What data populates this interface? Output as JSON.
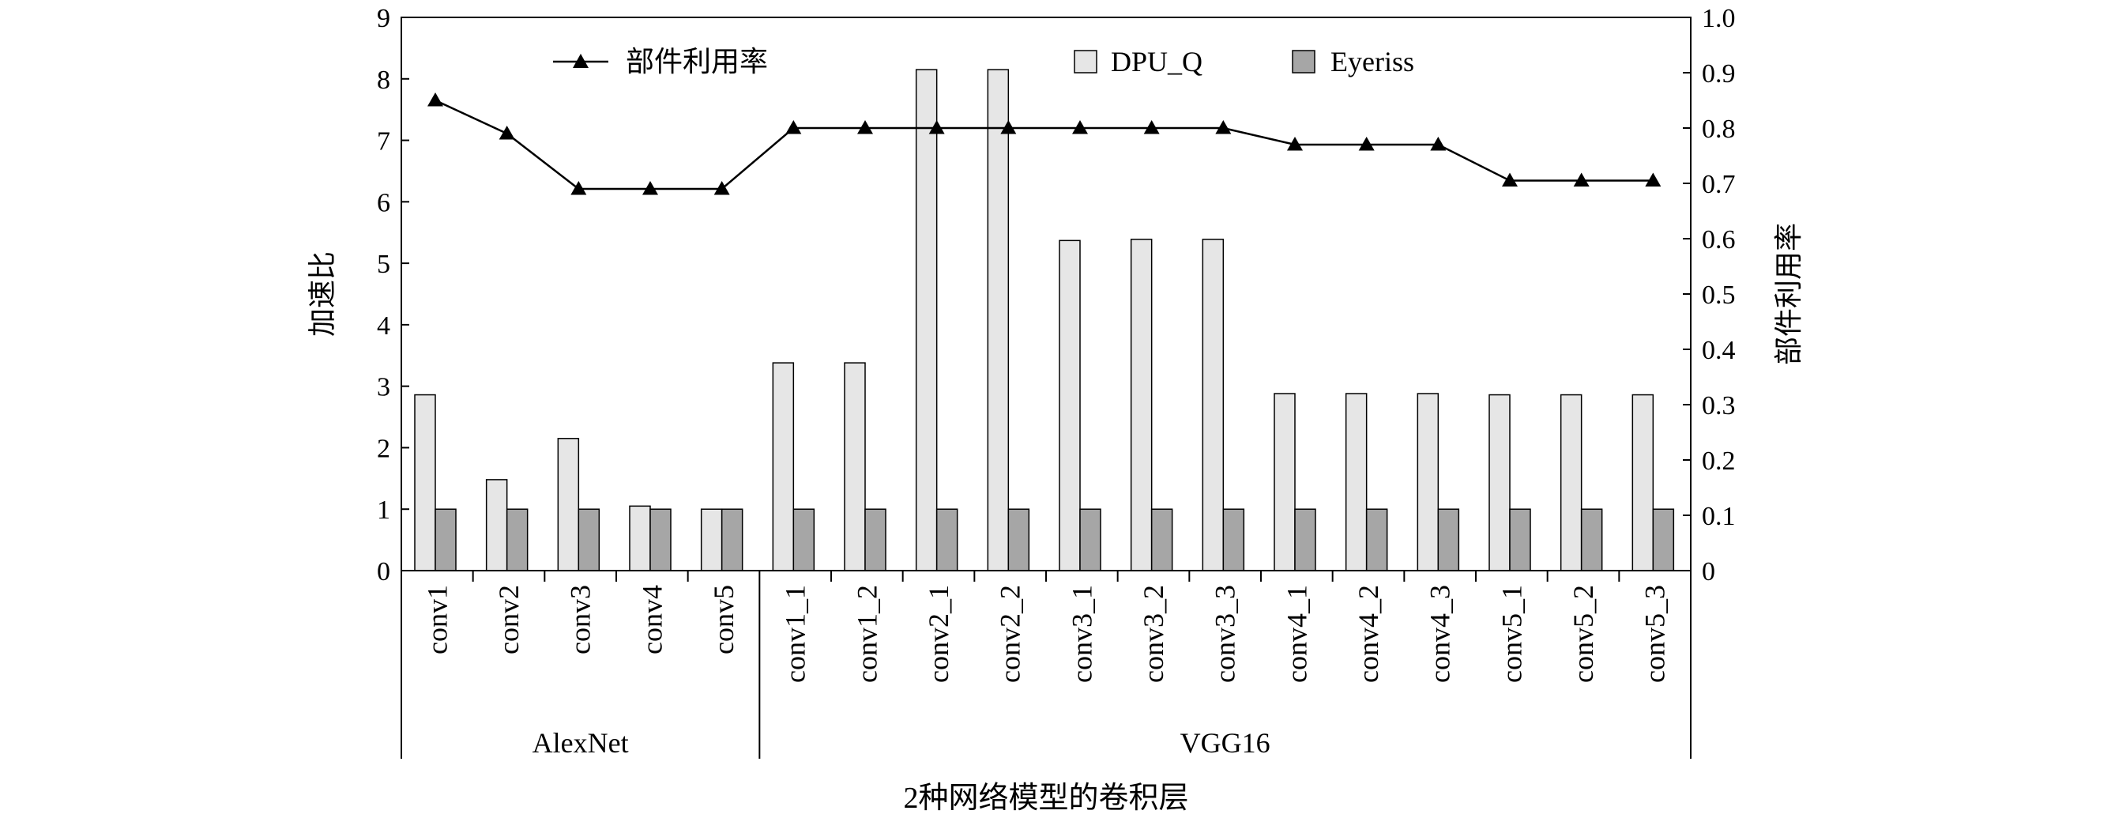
{
  "chart_data": {
    "type": "bar",
    "title": "",
    "xlabel": "2种网络模型的卷积层",
    "ylabel": "加速比",
    "y2label": "部件利用率",
    "ylim": [
      0,
      9
    ],
    "y2lim": [
      0,
      1.0
    ],
    "yticks": [
      "0",
      "1",
      "2",
      "3",
      "4",
      "5",
      "6",
      "7",
      "8",
      "9"
    ],
    "y2ticks": [
      "0",
      "0.1",
      "0.2",
      "0.3",
      "0.4",
      "0.5",
      "0.6",
      "0.7",
      "0.8",
      "0.9",
      "1.0"
    ],
    "categories": [
      "conv1",
      "conv2",
      "conv3",
      "conv4",
      "conv5",
      "conv1_1",
      "conv1_2",
      "conv2_1",
      "conv2_2",
      "conv3_1",
      "conv3_2",
      "conv3_3",
      "conv4_1",
      "conv4_2",
      "conv4_3",
      "conv5_1",
      "conv5_2",
      "conv5_3"
    ],
    "groups": [
      {
        "name": "AlexNet",
        "start": 0,
        "end": 4
      },
      {
        "name": "VGG16",
        "start": 5,
        "end": 17
      }
    ],
    "series": [
      {
        "name": "DPU_Q",
        "type": "bar",
        "axis": "left",
        "color": "#e6e6e6",
        "values": [
          2.86,
          1.48,
          2.15,
          1.05,
          1.0,
          3.38,
          3.38,
          8.15,
          8.15,
          5.37,
          5.39,
          5.39,
          2.88,
          2.88,
          2.88,
          2.86,
          2.86,
          2.86
        ]
      },
      {
        "name": "Eyeriss",
        "type": "bar",
        "axis": "left",
        "color": "#a6a6a6",
        "values": [
          1,
          1,
          1,
          1,
          1,
          1,
          1,
          1,
          1,
          1,
          1,
          1,
          1,
          1,
          1,
          1,
          1,
          1
        ]
      },
      {
        "name": "部件利用率",
        "type": "line",
        "axis": "right",
        "marker": "triangle",
        "color": "#000000",
        "values": [
          0.85,
          0.79,
          0.69,
          0.69,
          0.69,
          0.8,
          0.8,
          0.8,
          0.8,
          0.8,
          0.8,
          0.8,
          0.77,
          0.77,
          0.77,
          0.705,
          0.705,
          0.705
        ]
      }
    ],
    "legend_position": "top"
  }
}
